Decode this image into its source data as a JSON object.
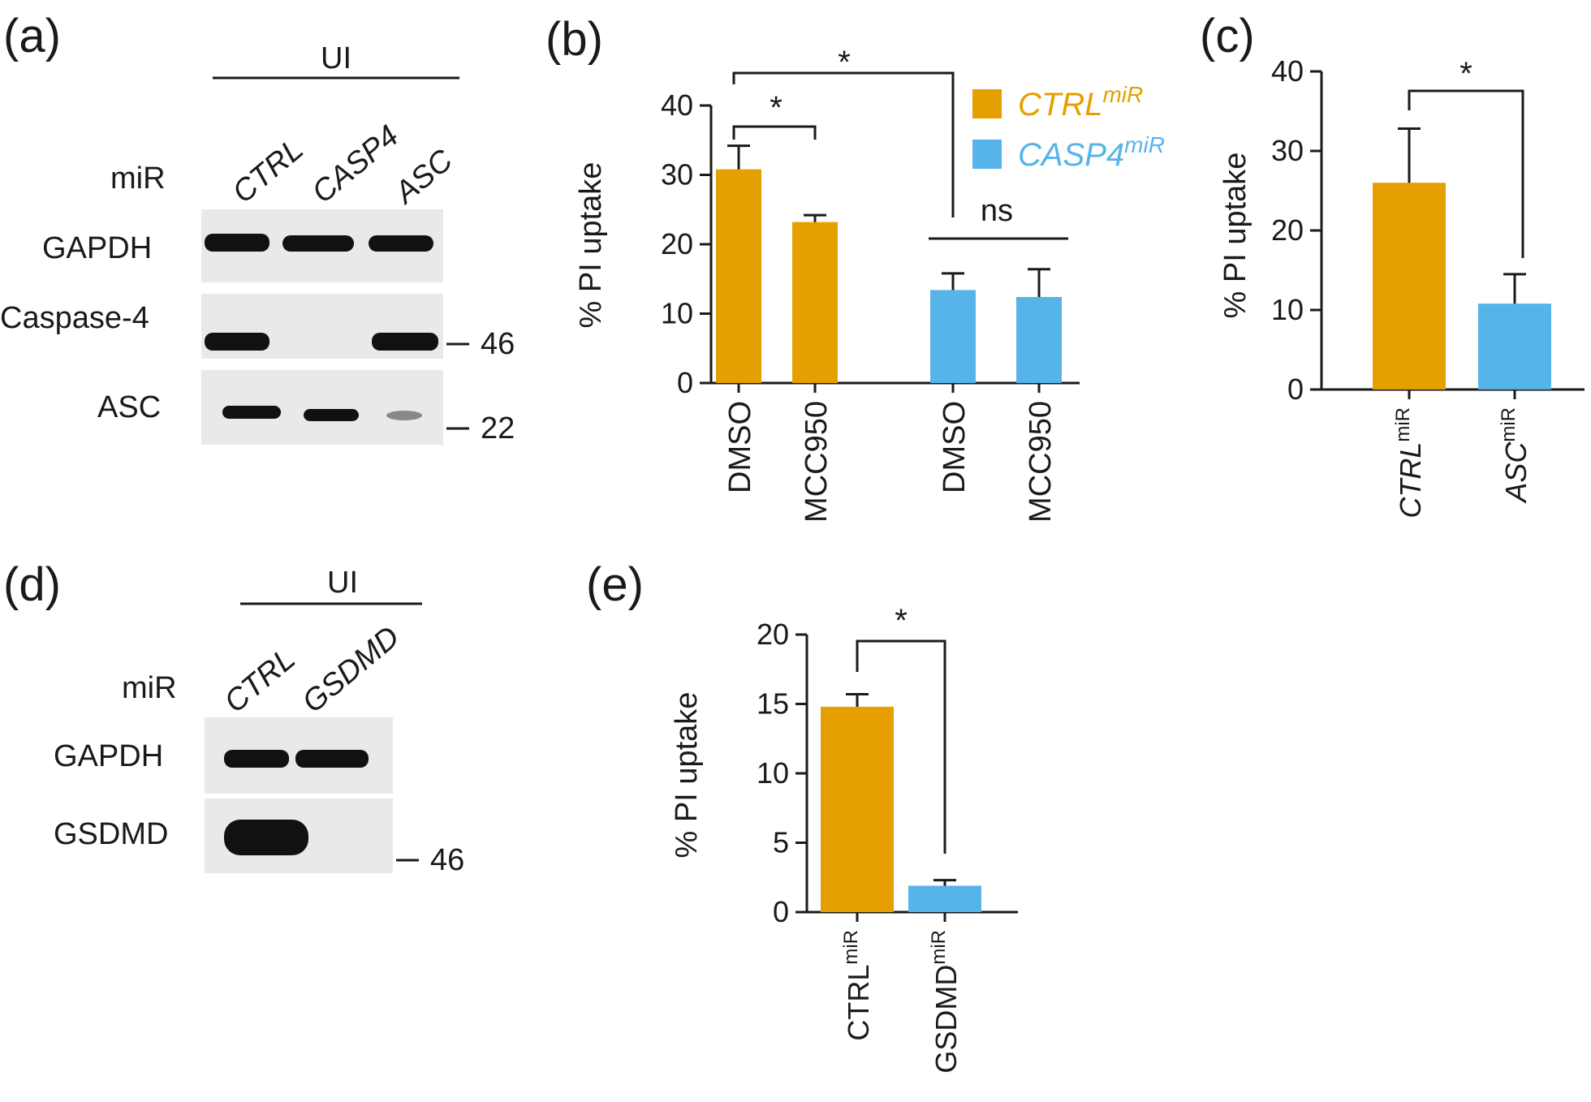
{
  "colors": {
    "ctrl": "#E69F00",
    "knockdown": "#56B4E9"
  },
  "panel_labels": {
    "a": "(a)",
    "b": "(b)",
    "c": "(c)",
    "d": "(d)",
    "e": "(e)"
  },
  "blot_a": {
    "group_label": "UI",
    "mir_label": "miR",
    "lanes": [
      "CTRL",
      "CASP4",
      "ASC"
    ],
    "rows": [
      "GAPDH",
      "Caspase-4",
      "ASC"
    ],
    "markers": [
      "46",
      "22"
    ]
  },
  "blot_d": {
    "group_label": "UI",
    "mir_label": "miR",
    "lanes": [
      "CTRL",
      "GSDMD"
    ],
    "rows": [
      "GAPDH",
      "GSDMD"
    ],
    "markers": [
      "46"
    ]
  },
  "chart_data": [
    {
      "panel": "b",
      "type": "bar",
      "ylabel": "% PI uptake",
      "ylim": [
        0,
        40
      ],
      "yticks": [
        "0",
        "10",
        "20",
        "30",
        "40"
      ],
      "categories": [
        "DMSO",
        "MCC950",
        "DMSO",
        "MCC950"
      ],
      "values": [
        30.8,
        23.2,
        13.4,
        12.4
      ],
      "errors": [
        3.4,
        1.0,
        2.4,
        4.0
      ],
      "series_of_bar": [
        0,
        0,
        1,
        1
      ],
      "legend": {
        "position": "top-right",
        "entries": [
          {
            "base": "CTRL",
            "sup": "miR"
          },
          {
            "base": "CASP4",
            "sup": "miR"
          }
        ]
      },
      "annotations": [
        "*",
        "*",
        "ns"
      ]
    },
    {
      "panel": "c",
      "type": "bar",
      "ylabel": "% PI uptake",
      "ylim": [
        0,
        40
      ],
      "yticks": [
        "0",
        "10",
        "20",
        "30",
        "40"
      ],
      "categories": [
        {
          "base": "CTRL",
          "sup": "miR"
        },
        {
          "base": "ASC",
          "sup": "miR"
        }
      ],
      "values": [
        26.0,
        10.8
      ],
      "errors": [
        6.8,
        3.7
      ],
      "annotations": [
        "*"
      ]
    },
    {
      "panel": "e",
      "type": "bar",
      "ylabel": "% PI uptake",
      "ylim": [
        0,
        20
      ],
      "yticks": [
        "0",
        "5",
        "10",
        "15",
        "20"
      ],
      "categories": [
        {
          "base": "CTRL",
          "sup": "miR"
        },
        {
          "base": "GSDMD",
          "sup": "miR"
        }
      ],
      "values": [
        14.8,
        1.9
      ],
      "errors": [
        0.9,
        0.4
      ],
      "annotations": [
        "*"
      ]
    }
  ]
}
